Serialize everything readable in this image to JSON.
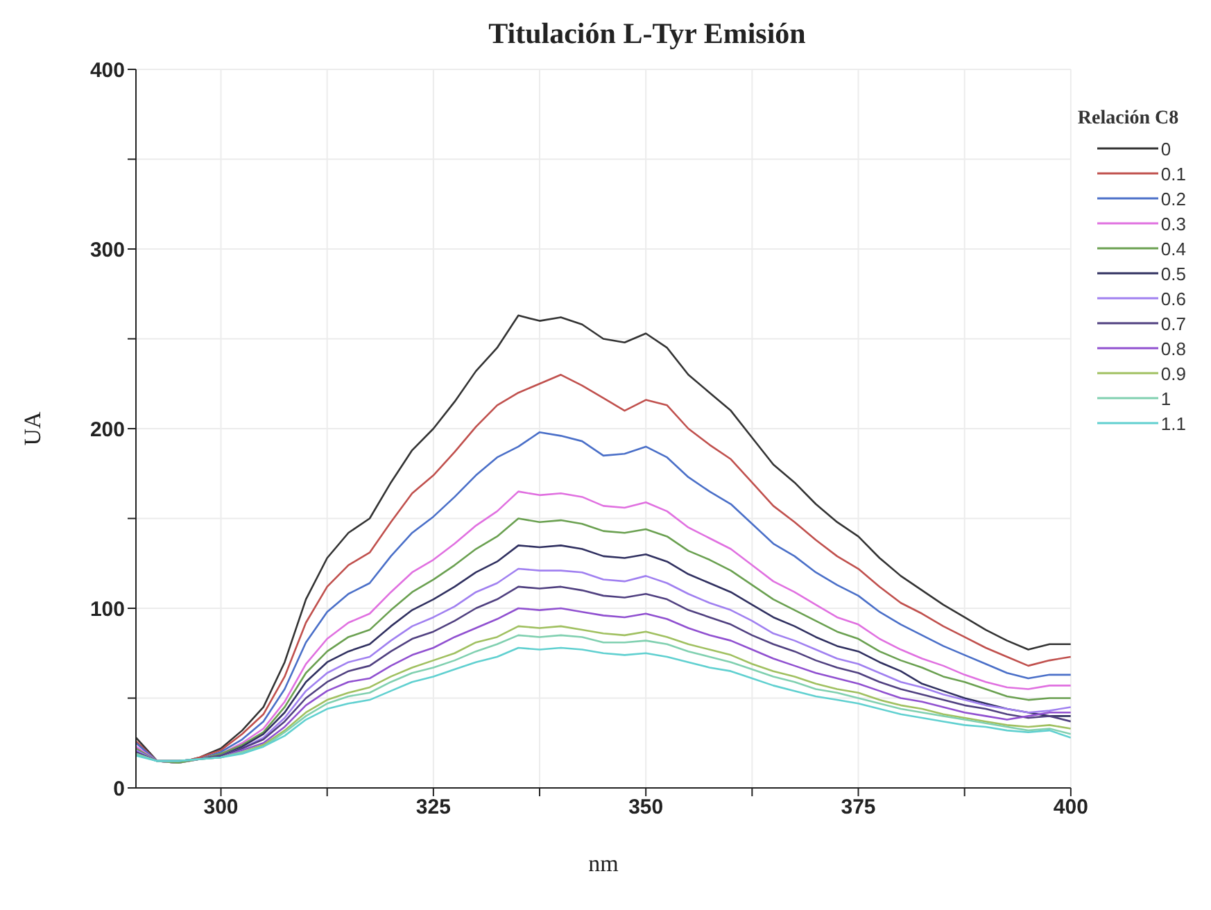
{
  "chart_data": {
    "type": "line",
    "title": "Titulación L-Tyr Emisión",
    "xlabel": "nm",
    "ylabel": "UA",
    "legend_title": "Relación C8",
    "legend": "top right",
    "grid": true,
    "xlim": [
      290,
      400
    ],
    "ylim": [
      0,
      400
    ],
    "xticks": [
      300,
      {
        "value": 312.5,
        "label": null
      },
      325,
      {
        "value": 337.5,
        "label": null
      },
      350,
      {
        "value": 362.5,
        "label": null
      },
      375,
      {
        "value": 387.5,
        "label": null
      },
      400
    ],
    "yticks": [
      0,
      {
        "value": 50,
        "label": null
      },
      100,
      {
        "value": 150,
        "label": null
      },
      200,
      {
        "value": 250,
        "label": null
      },
      300,
      {
        "value": 350,
        "label": null
      },
      400
    ],
    "x": [
      290,
      292.5,
      295,
      297.5,
      300,
      302.5,
      305,
      307.5,
      310,
      312.5,
      315,
      317.5,
      320,
      322.5,
      325,
      327.5,
      330,
      332.5,
      335,
      337.5,
      340,
      342.5,
      345,
      347.5,
      350,
      352.5,
      355,
      357.5,
      360,
      362.5,
      365,
      367.5,
      370,
      372.5,
      375,
      377.5,
      380,
      382.5,
      385,
      387.5,
      390,
      392.5,
      395,
      397.5,
      400
    ],
    "series": [
      {
        "name": "0",
        "color": "#333333",
        "values": [
          28,
          15,
          14,
          17,
          22,
          32,
          45,
          70,
          105,
          128,
          142,
          150,
          170,
          188,
          200,
          215,
          232,
          245,
          263,
          260,
          262,
          258,
          250,
          248,
          253,
          245,
          230,
          220,
          210,
          195,
          180,
          170,
          158,
          148,
          140,
          128,
          118,
          110,
          102,
          95,
          88,
          82,
          77,
          80,
          80
        ]
      },
      {
        "name": "0.1",
        "color": "#c0504d",
        "values": [
          26,
          15,
          14,
          17,
          21,
          30,
          41,
          62,
          92,
          112,
          124,
          131,
          148,
          164,
          174,
          187,
          201,
          213,
          220,
          225,
          230,
          224,
          217,
          210,
          216,
          213,
          200,
          191,
          183,
          170,
          157,
          148,
          138,
          129,
          122,
          112,
          103,
          97,
          90,
          84,
          78,
          73,
          68,
          71,
          73
        ]
      },
      {
        "name": "0.2",
        "color": "#4a6fc8",
        "values": [
          25,
          15,
          14,
          16,
          20,
          27,
          37,
          55,
          81,
          98,
          108,
          114,
          129,
          142,
          151,
          162,
          174,
          184,
          190,
          198,
          196,
          193,
          185,
          186,
          190,
          184,
          173,
          165,
          158,
          147,
          136,
          129,
          120,
          113,
          107,
          98,
          91,
          85,
          79,
          74,
          69,
          64,
          61,
          63,
          63
        ]
      },
      {
        "name": "0.3",
        "color": "#e070e0",
        "values": [
          23,
          15,
          14,
          16,
          19,
          25,
          33,
          48,
          69,
          83,
          92,
          97,
          109,
          120,
          127,
          136,
          146,
          154,
          165,
          163,
          164,
          162,
          157,
          156,
          159,
          154,
          145,
          139,
          133,
          124,
          115,
          109,
          102,
          95,
          91,
          83,
          77,
          72,
          68,
          63,
          59,
          56,
          55,
          57,
          57
        ]
      },
      {
        "name": "0.4",
        "color": "#6aa050",
        "values": [
          22,
          15,
          14,
          16,
          19,
          24,
          31,
          45,
          64,
          76,
          84,
          88,
          99,
          109,
          116,
          124,
          133,
          140,
          150,
          148,
          149,
          147,
          143,
          142,
          144,
          140,
          132,
          127,
          121,
          113,
          105,
          99,
          93,
          87,
          83,
          76,
          71,
          67,
          62,
          59,
          55,
          51,
          49,
          50,
          50
        ]
      },
      {
        "name": "0.5",
        "color": "#303060",
        "values": [
          21,
          15,
          15,
          16,
          18,
          23,
          30,
          42,
          59,
          70,
          76,
          80,
          90,
          99,
          105,
          112,
          120,
          126,
          135,
          134,
          135,
          133,
          129,
          128,
          130,
          126,
          119,
          114,
          109,
          102,
          95,
          90,
          84,
          79,
          76,
          70,
          65,
          58,
          54,
          50,
          47,
          44,
          42,
          40,
          40
        ]
      },
      {
        "name": "0.6",
        "color": "#a080f0",
        "values": [
          21,
          15,
          15,
          16,
          18,
          22,
          28,
          39,
          54,
          64,
          70,
          73,
          82,
          90,
          95,
          101,
          109,
          114,
          122,
          121,
          121,
          120,
          116,
          115,
          118,
          114,
          108,
          103,
          99,
          93,
          86,
          82,
          77,
          72,
          69,
          64,
          59,
          56,
          52,
          49,
          46,
          44,
          42,
          43,
          45
        ]
      },
      {
        "name": "0.7",
        "color": "#504080",
        "values": [
          20,
          15,
          15,
          16,
          18,
          22,
          27,
          37,
          50,
          59,
          65,
          68,
          76,
          83,
          87,
          93,
          100,
          105,
          112,
          111,
          112,
          110,
          107,
          106,
          108,
          105,
          99,
          95,
          91,
          85,
          80,
          76,
          71,
          67,
          64,
          59,
          55,
          52,
          49,
          46,
          44,
          41,
          39,
          40,
          37
        ]
      },
      {
        "name": "0.8",
        "color": "#9050d0",
        "values": [
          19,
          15,
          15,
          16,
          17,
          21,
          25,
          34,
          46,
          54,
          59,
          61,
          68,
          74,
          78,
          84,
          89,
          94,
          100,
          99,
          100,
          98,
          96,
          95,
          97,
          94,
          89,
          85,
          82,
          77,
          72,
          68,
          64,
          61,
          58,
          54,
          50,
          48,
          45,
          42,
          40,
          38,
          40,
          42,
          42
        ]
      },
      {
        "name": "0.9",
        "color": "#a0c060",
        "values": [
          19,
          15,
          15,
          16,
          17,
          20,
          24,
          32,
          42,
          49,
          53,
          56,
          62,
          67,
          71,
          75,
          81,
          84,
          90,
          89,
          90,
          88,
          86,
          85,
          87,
          84,
          80,
          77,
          74,
          69,
          65,
          62,
          58,
          55,
          53,
          49,
          46,
          44,
          41,
          39,
          37,
          35,
          34,
          35,
          33
        ]
      },
      {
        "name": "1",
        "color": "#80d0b0",
        "values": [
          19,
          15,
          15,
          16,
          17,
          20,
          23,
          31,
          40,
          47,
          51,
          53,
          59,
          64,
          67,
          71,
          76,
          80,
          85,
          84,
          85,
          84,
          81,
          81,
          82,
          80,
          76,
          73,
          70,
          66,
          62,
          59,
          55,
          53,
          50,
          47,
          44,
          42,
          40,
          38,
          36,
          34,
          32,
          33,
          30
        ]
      },
      {
        "name": "1.1",
        "color": "#60d0d0",
        "values": [
          18,
          15,
          15,
          16,
          17,
          19,
          23,
          29,
          38,
          44,
          47,
          49,
          54,
          59,
          62,
          66,
          70,
          73,
          78,
          77,
          78,
          77,
          75,
          74,
          75,
          73,
          70,
          67,
          65,
          61,
          57,
          54,
          51,
          49,
          47,
          44,
          41,
          39,
          37,
          35,
          34,
          32,
          31,
          32,
          28
        ]
      }
    ]
  }
}
